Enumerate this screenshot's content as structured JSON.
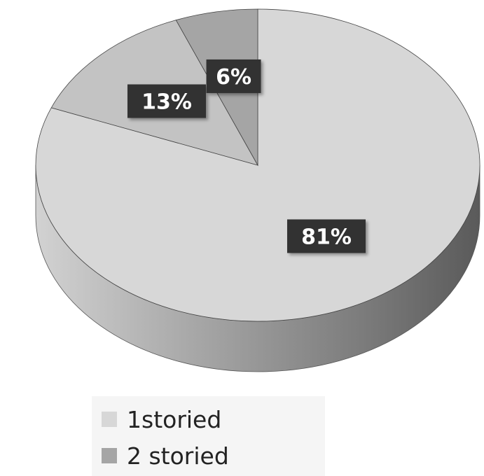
{
  "chart_data": {
    "type": "pie",
    "style": "3d",
    "slices": [
      {
        "name": "1storied",
        "value": 81,
        "label": "81%",
        "color": "#d7d7d7"
      },
      {
        "name": "",
        "value": 13,
        "label": "13%",
        "color": "#c3c3c3"
      },
      {
        "name": "2 storied",
        "value": 6,
        "label": "6%",
        "color": "#a5a5a5"
      }
    ],
    "legend": {
      "placement": "bottom",
      "entries": [
        {
          "label": "1storied",
          "color": "#d7d7d7"
        },
        {
          "label": "2 storied",
          "color": "#a5a5a5"
        }
      ]
    }
  }
}
